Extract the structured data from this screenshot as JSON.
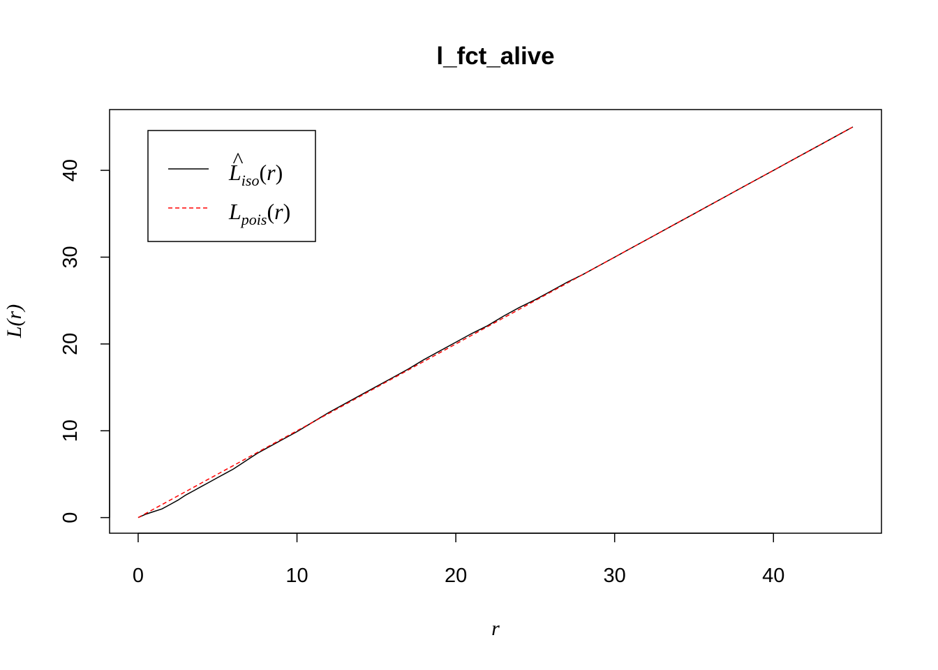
{
  "chart_data": {
    "type": "line",
    "title": "l_fct_alive",
    "xlabel": "r",
    "ylabel": "L(r)",
    "xlim": [
      -1.8,
      46.8
    ],
    "ylim": [
      -1.8,
      47.0
    ],
    "xticks": [
      0,
      10,
      20,
      30,
      40
    ],
    "yticks": [
      0,
      10,
      20,
      30,
      40
    ],
    "grid": false,
    "legend_position": "top-left",
    "series": [
      {
        "name": "L̂iso(r)",
        "legend": {
          "main": "L",
          "hat": "^",
          "sub": "iso",
          "arg": "(r)"
        },
        "color": "#000000",
        "dash": "solid",
        "x": [
          0,
          0.5,
          1,
          1.5,
          2,
          2.5,
          3,
          3.5,
          4,
          4.5,
          5,
          5.5,
          6,
          6.5,
          7,
          7.5,
          8,
          9,
          10,
          11,
          12,
          13,
          14,
          15,
          16,
          17,
          18,
          19,
          20,
          21,
          22,
          23,
          24,
          25,
          26,
          27,
          28,
          29,
          30,
          31,
          32,
          33,
          34,
          35,
          36,
          37,
          38,
          39,
          40,
          41,
          42,
          43,
          44,
          45
        ],
        "y": [
          0,
          0.4,
          0.7,
          1.0,
          1.5,
          2.0,
          2.6,
          3.1,
          3.6,
          4.1,
          4.6,
          5.1,
          5.6,
          6.2,
          6.8,
          7.4,
          7.9,
          8.9,
          9.9,
          11.0,
          12.1,
          13.1,
          14.1,
          15.1,
          16.1,
          17.1,
          18.2,
          19.2,
          20.2,
          21.2,
          22.1,
          23.2,
          24.2,
          25.1,
          26.1,
          27.1,
          28.0,
          29.0,
          30.0,
          31.0,
          32.0,
          33.0,
          34.0,
          35.0,
          36.0,
          37.0,
          38.0,
          39.0,
          40.0,
          41.0,
          42.0,
          43.0,
          44.0,
          45.0
        ]
      },
      {
        "name": "Lpois(r)",
        "legend": {
          "main": "L",
          "hat": "",
          "sub": "pois",
          "arg": "(r)"
        },
        "color": "#FF0000",
        "dash": "dashed",
        "x": [
          0,
          45
        ],
        "y": [
          0,
          45
        ]
      }
    ]
  }
}
